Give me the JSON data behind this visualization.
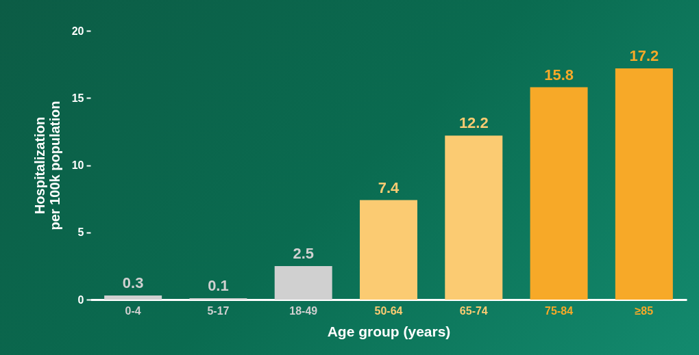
{
  "chart_data": {
    "type": "bar",
    "xlabel": "Age group (years)",
    "ylabel": "Hospitalization per 100k population",
    "categories": [
      "0-4",
      "5-17",
      "18-49",
      "50-64",
      "65-74",
      "75-84",
      "≥85"
    ],
    "values": [
      0.3,
      0.1,
      2.5,
      7.4,
      12.2,
      15.8,
      17.2
    ],
    "colors": [
      "#d0d0d0",
      "#d0d0d0",
      "#d0d0d0",
      "#fbcb72",
      "#fbcb72",
      "#f7a928",
      "#f7a928"
    ],
    "ylim": [
      0,
      20
    ],
    "yticks": [
      0,
      5,
      10,
      15,
      20
    ],
    "data_labels": true,
    "grid": false
  }
}
